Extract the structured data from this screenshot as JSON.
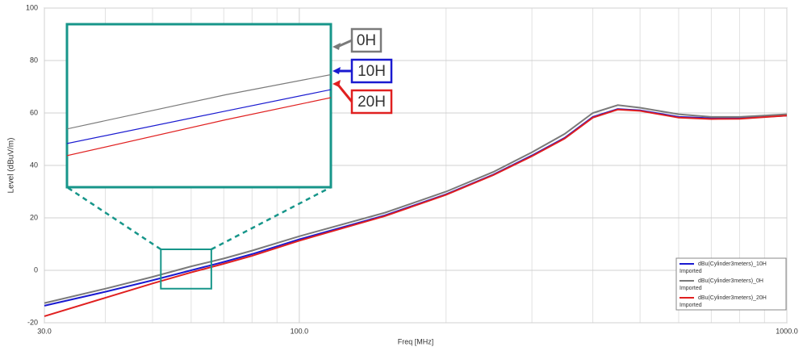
{
  "chart_data": {
    "type": "line",
    "xlabel": "Freq [MHz]",
    "ylabel": "Level (dBuV/m)",
    "x": [
      30,
      40,
      50,
      60,
      70,
      80,
      100,
      150,
      200,
      250,
      300,
      350,
      400,
      450,
      500,
      600,
      700,
      800,
      1000
    ],
    "series": [
      {
        "name": "dBu(Cylinder3meters)_10H",
        "source": "Imported",
        "color": "#1a1ad0",
        "values": [
          -13.5,
          -8.2,
          -3.8,
          0,
          3.2,
          6.2,
          11.8,
          21,
          29,
          36.5,
          43.8,
          50.5,
          58.5,
          61.5,
          61,
          58.5,
          58,
          58,
          59
        ]
      },
      {
        "name": "dBu(Cylinder3meters)_0H",
        "source": "Imported",
        "color": "#7a7a7a",
        "values": [
          -12.5,
          -7,
          -2.5,
          1.5,
          4.5,
          7.5,
          13,
          22,
          30,
          37.5,
          45,
          52,
          60,
          63,
          62,
          59.5,
          58.5,
          58.5,
          59.5
        ]
      },
      {
        "name": "dBu(Cylinder3meters)_20H",
        "source": "Imported",
        "color": "#e02020",
        "values": [
          -17.5,
          -10.5,
          -5,
          -0.8,
          2.5,
          5.5,
          11.3,
          20.7,
          28.8,
          36.3,
          43.5,
          50.2,
          58.2,
          61.3,
          60.8,
          58.2,
          57.7,
          57.8,
          59
        ]
      }
    ],
    "xscale": "log",
    "xlim": [
      30,
      1000
    ],
    "xticks": [
      {
        "value": 30,
        "label": "30.0"
      },
      {
        "value": 100,
        "label": "100.0"
      },
      {
        "value": 1000,
        "label": "1000.0"
      }
    ],
    "xminor": [
      40,
      50,
      60,
      70,
      80,
      90,
      200,
      300,
      400,
      500,
      600,
      700,
      800,
      900
    ],
    "ylim": [
      -20,
      100
    ],
    "yticks": [
      -20,
      0,
      20,
      40,
      60,
      80,
      100
    ],
    "grid": true,
    "legend": "lower right",
    "zoom": {
      "xlim": [
        52,
        66
      ],
      "ylim": [
        -7,
        8
      ],
      "color": "#17968a"
    },
    "annotations": [
      {
        "text": "0H",
        "color": "#7a7a7a"
      },
      {
        "text": "10H",
        "color": "#1a1ad0"
      },
      {
        "text": "20H",
        "color": "#e02020"
      }
    ]
  }
}
